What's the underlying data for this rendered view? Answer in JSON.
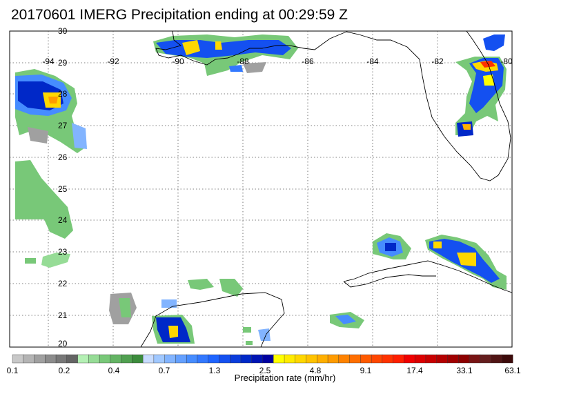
{
  "title": "20170601 IMERG Precipitation ending at 00:29:59 Z",
  "map": {
    "lon_labels": [
      "-94",
      "-92",
      "-90",
      "-88",
      "-86",
      "-84",
      "-82",
      "-80"
    ],
    "lat_labels": [
      "30",
      "29",
      "28",
      "27",
      "26",
      "25",
      "24",
      "23",
      "22",
      "21",
      "20"
    ]
  },
  "colorbar": {
    "title": "Precipitation rate (mm/hr)",
    "tick_labels": [
      "0.1",
      "0.2",
      "0.4",
      "0.7",
      "1.3",
      "2.5",
      "4.8",
      "9.1",
      "17.4",
      "33.1",
      "63.1"
    ],
    "colors": [
      "#c8c8c8",
      "#b4b4b4",
      "#a0a0a0",
      "#8c8c8c",
      "#787878",
      "#646464",
      "#b4f0b4",
      "#96dc96",
      "#78c878",
      "#64b464",
      "#50a050",
      "#3c8c3c",
      "#c8dcff",
      "#a0c8ff",
      "#82b4ff",
      "#64a0ff",
      "#468cff",
      "#3278ff",
      "#1e64ff",
      "#1450f0",
      "#0a3cdc",
      "#0028c8",
      "#0014b4",
      "#0000a0",
      "#ffff00",
      "#ffeb00",
      "#ffd700",
      "#ffc300",
      "#ffaf00",
      "#ff9b00",
      "#ff8200",
      "#ff6e00",
      "#ff5a00",
      "#ff4600",
      "#ff3200",
      "#ff1e00",
      "#f00000",
      "#dc0000",
      "#c80000",
      "#b40000",
      "#a00000",
      "#8c0000",
      "#781414",
      "#641e1e",
      "#501414",
      "#3c0a0a"
    ]
  }
}
